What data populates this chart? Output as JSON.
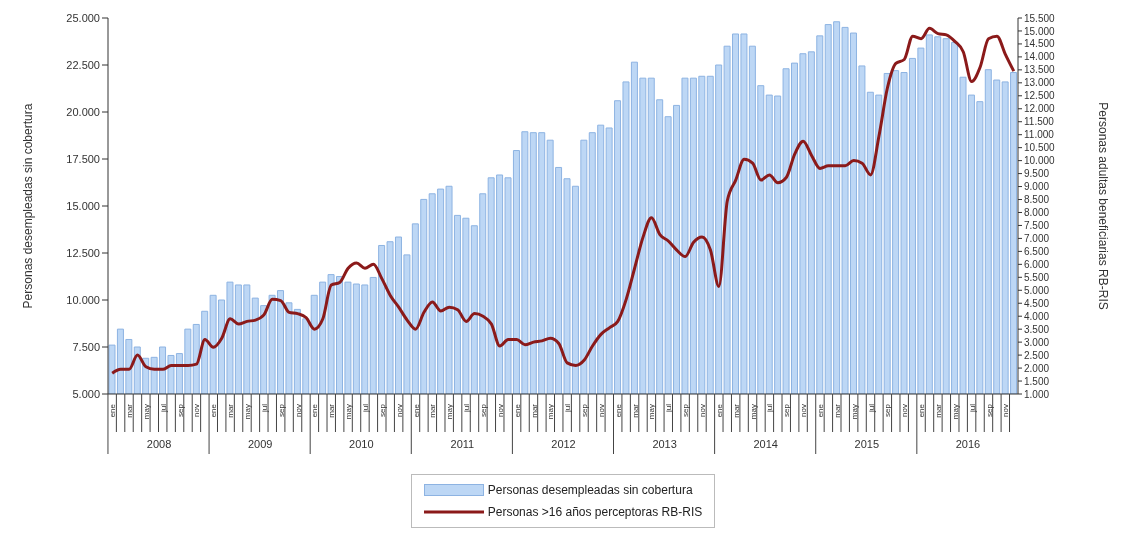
{
  "chart_data": {
    "type": "bar",
    "xlabel": null,
    "ylabel": "Personas desempleadas  sin cobertura",
    "y2label": "Personas adultas beneficiarias RB-RIS",
    "categories": [
      "ene",
      null,
      "mar",
      null,
      "may",
      null,
      "jul",
      null,
      "sep",
      null,
      "nov",
      null,
      "ene",
      null,
      "mar",
      null,
      "may",
      null,
      "jul",
      null,
      "sep",
      null,
      "nov",
      null,
      "ene",
      null,
      "mar",
      null,
      "may",
      null,
      "jul",
      null,
      "sep",
      null,
      "nov",
      null,
      "ene",
      null,
      "mar",
      null,
      "may",
      null,
      "jul",
      null,
      "sep",
      null,
      "nov",
      null,
      "ene",
      null,
      "mar",
      null,
      "may",
      null,
      "jul",
      null,
      "sep",
      null,
      "nov",
      null,
      "ene",
      null,
      "mar",
      null,
      "may",
      null,
      "jul",
      null,
      "sep",
      null,
      "nov",
      null,
      "ene",
      null,
      "mar",
      null,
      "may",
      null,
      "jul",
      null,
      "sep",
      null,
      "nov",
      null,
      "ene",
      null,
      "mar",
      null,
      "may",
      null,
      "jul",
      null,
      "sep",
      null,
      "nov",
      null,
      "ene",
      null,
      "mar",
      null,
      "may",
      null,
      "jul",
      null,
      "sep",
      null,
      "nov",
      null
    ],
    "annotations": [
      "2008",
      "2009",
      "2010",
      "2011",
      "2012",
      "2013",
      "2014",
      "2015",
      "2016"
    ],
    "series": [
      {
        "name": "Personas desempleadas sin cobertura",
        "color": "#bdd7f5",
        "values": [
          7600,
          8450,
          7900,
          7500,
          6900,
          6950,
          7500,
          7050,
          7150,
          8450,
          8700,
          9400,
          10250,
          10000,
          10950,
          10800,
          10800,
          10100,
          9700,
          10250,
          10500,
          9850,
          9500,
          9000,
          10250,
          10950,
          11350,
          11250,
          10950,
          10850,
          10800,
          11200,
          12900,
          13100,
          13350,
          12400,
          14050,
          15350,
          15650,
          15900,
          16050,
          14500,
          14350,
          13950,
          15650,
          16500,
          16650,
          16500,
          17950,
          18950,
          18900,
          18900,
          18500,
          17050,
          16450,
          16050,
          18500,
          18900,
          19300,
          19150,
          20600,
          21600,
          22650,
          21800,
          21800,
          20650,
          19750,
          20350,
          21800,
          21800,
          21900,
          21900,
          22500,
          23500,
          24150,
          24150,
          23500,
          21400,
          20900,
          20850,
          22300,
          22600,
          23100,
          23200,
          24050,
          24650,
          24800,
          24500,
          24200,
          22450,
          21050,
          20900,
          22050,
          22200,
          22100,
          22850,
          23400,
          24100,
          24000,
          23900,
          23700,
          21850,
          20900,
          20550,
          22250,
          21700,
          21600,
          22100
        ]
      },
      {
        "name": "Personas >16 años perceptoras RB-RIS",
        "type": "line",
        "axis": "y2",
        "color": "#8b1a1a",
        "values": [
          1800,
          1950,
          1950,
          2500,
          2050,
          1950,
          1950,
          2100,
          2100,
          2100,
          2150,
          3100,
          2800,
          3150,
          3900,
          3700,
          3800,
          3850,
          4050,
          4650,
          4600,
          4150,
          4100,
          3950,
          3500,
          3900,
          5200,
          5300,
          5850,
          6050,
          5850,
          6000,
          5450,
          4800,
          4350,
          3850,
          3500,
          4150,
          4550,
          4200,
          4350,
          4250,
          3800,
          4100,
          4000,
          3700,
          2850,
          3100,
          3100,
          2900,
          3000,
          3050,
          3150,
          2950,
          2200,
          2100,
          2300,
          2850,
          3300,
          3550,
          3800,
          4650,
          5850,
          7050,
          7800,
          7150,
          6900,
          6550,
          6300,
          6850,
          7050,
          6550,
          5150,
          8450,
          9250,
          10050,
          9900,
          9250,
          9450,
          9150,
          9350,
          10250,
          10750,
          10200,
          9700,
          9800,
          9800,
          9800,
          10000,
          9900,
          9450,
          10950,
          12800,
          13750,
          13900,
          14800,
          14700,
          15100,
          14900,
          14850,
          14600,
          14200,
          13050,
          13600,
          14700,
          14800,
          14100,
          13450
        ]
      }
    ],
    "ylim": [
      5000,
      25000
    ],
    "yticks": [
      {
        "value": 5000,
        "label": "5.000"
      },
      {
        "value": 7500,
        "label": "7.500"
      },
      {
        "value": 10000,
        "label": "10.000"
      },
      {
        "value": 12500,
        "label": "12.500"
      },
      {
        "value": 15000,
        "label": "15.000"
      },
      {
        "value": 17500,
        "label": "17.500"
      },
      {
        "value": 20000,
        "label": "20.000"
      },
      {
        "value": 22500,
        "label": "22.500"
      },
      {
        "value": 25000,
        "label": "25.000"
      }
    ],
    "y2lim": [
      1000,
      15500
    ],
    "y2ticks": [
      {
        "value": 1000,
        "label": "1.000"
      },
      {
        "value": 1500,
        "label": "1.500"
      },
      {
        "value": 2000,
        "label": "2.000"
      },
      {
        "value": 2500,
        "label": "2.500"
      },
      {
        "value": 3000,
        "label": "3.000"
      },
      {
        "value": 3500,
        "label": "3.500"
      },
      {
        "value": 4000,
        "label": "4.000"
      },
      {
        "value": 4500,
        "label": "4.500"
      },
      {
        "value": 5000,
        "label": "5.000"
      },
      {
        "value": 5500,
        "label": "5.500"
      },
      {
        "value": 6000,
        "label": "6.000"
      },
      {
        "value": 6500,
        "label": "6.500"
      },
      {
        "value": 7000,
        "label": "7.000"
      },
      {
        "value": 7500,
        "label": "7.500"
      },
      {
        "value": 8000,
        "label": "8.000"
      },
      {
        "value": 8500,
        "label": "8.500"
      },
      {
        "value": 9000,
        "label": "9.000"
      },
      {
        "value": 9500,
        "label": "9.500"
      },
      {
        "value": 10000,
        "label": "10.000"
      },
      {
        "value": 10500,
        "label": "10.500"
      },
      {
        "value": 11000,
        "label": "11.000"
      },
      {
        "value": 11500,
        "label": "11.500"
      },
      {
        "value": 12000,
        "label": "12.000"
      },
      {
        "value": 12500,
        "label": "12.500"
      },
      {
        "value": 13000,
        "label": "13.000"
      },
      {
        "value": 13500,
        "label": "13.500"
      },
      {
        "value": 14000,
        "label": "14.000"
      },
      {
        "value": 14500,
        "label": "14.500"
      },
      {
        "value": 15000,
        "label": "15.000"
      },
      {
        "value": 15500,
        "label": "15.500"
      }
    ],
    "grid": false,
    "legend": "bottom",
    "marker": "none",
    "line_style": "solid"
  }
}
